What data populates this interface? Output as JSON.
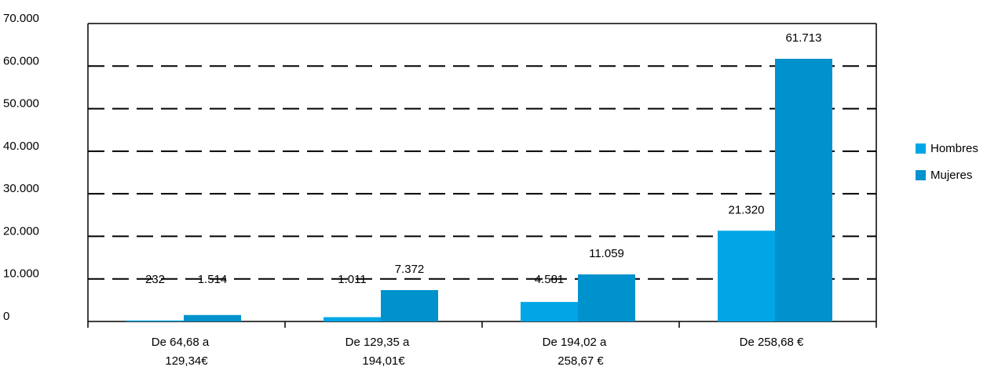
{
  "chart_data": {
    "type": "bar",
    "categories": [
      [
        "De 64,68 a",
        "129,34€"
      ],
      [
        "De 129,35 a",
        "194,01€"
      ],
      [
        "De 194,02 a",
        "258,67 €"
      ],
      [
        "De 258,68 €"
      ]
    ],
    "series": [
      {
        "name": "Hombres",
        "color": "#00a6e6",
        "values": [
          232,
          1011,
          4581,
          21320
        ],
        "labels": [
          "232",
          "1.011",
          "4.581",
          "21.320"
        ]
      },
      {
        "name": "Mujeres",
        "color": "#0092cc",
        "values": [
          1514,
          7372,
          11059,
          61713
        ],
        "labels": [
          "1.514",
          "7.372",
          "11.059",
          "61.713"
        ]
      }
    ],
    "ylim": [
      0,
      70000
    ],
    "yticks": [
      "0",
      "10.000",
      "20.000",
      "30.000",
      "40.000",
      "50.000",
      "60.000",
      "70.000"
    ],
    "grid": "dashed horizontal",
    "legend_position": "right"
  }
}
